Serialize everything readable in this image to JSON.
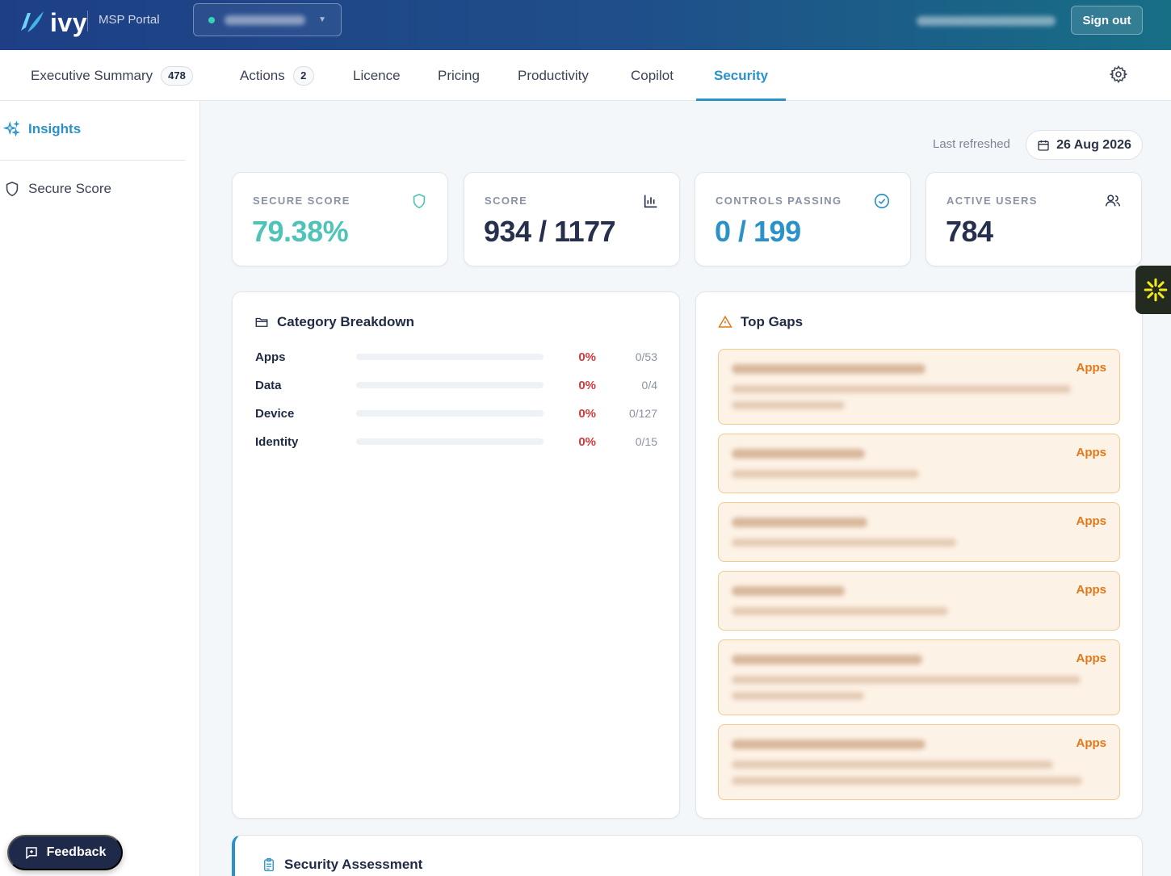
{
  "header": {
    "logo_text": "ivy",
    "portal_label": "MSP Portal",
    "signout_label": "Sign out"
  },
  "tabs": [
    {
      "label": "Executive Summary",
      "badge": "478"
    },
    {
      "label": "Actions",
      "badge": "2"
    },
    {
      "label": "Licence"
    },
    {
      "label": "Pricing"
    },
    {
      "label": "Productivity"
    },
    {
      "label": "Copilot"
    },
    {
      "label": "Security",
      "active": true
    }
  ],
  "sidebar": {
    "items": [
      {
        "label": "Insights",
        "icon": "sparkle-icon",
        "active": true
      },
      {
        "label": "Secure Score",
        "icon": "shield-icon"
      }
    ],
    "feedback_label": "Feedback"
  },
  "refresh": {
    "label": "Last refreshed",
    "date": "26 Aug 2026"
  },
  "stats": [
    {
      "label": "SECURE SCORE",
      "value": "79.38%",
      "color": "#4fc3b8",
      "icon": "shield-icon"
    },
    {
      "label": "SCORE",
      "value": "934 / 1177",
      "color": "#26304d",
      "icon": "bar-chart-icon"
    },
    {
      "label": "CONTROLS PASSING",
      "value": "0 / 199",
      "color": "#2a92c9",
      "icon": "check-circle-icon"
    },
    {
      "label": "ACTIVE USERS",
      "value": "784",
      "color": "#26304d",
      "icon": "users-icon"
    }
  ],
  "category_breakdown": {
    "title": "Category Breakdown",
    "rows": [
      {
        "name": "Apps",
        "percent": "0%",
        "count": "0/53",
        "fill": 0
      },
      {
        "name": "Data",
        "percent": "0%",
        "count": "0/4",
        "fill": 0
      },
      {
        "name": "Device",
        "percent": "0%",
        "count": "0/127",
        "fill": 0
      },
      {
        "name": "Identity",
        "percent": "0%",
        "count": "0/15",
        "fill": 0
      }
    ]
  },
  "top_gaps": {
    "title": "Top Gaps",
    "items": [
      {
        "tag": "Apps"
      },
      {
        "tag": "Apps"
      },
      {
        "tag": "Apps"
      },
      {
        "tag": "Apps"
      },
      {
        "tag": "Apps"
      },
      {
        "tag": "Apps"
      }
    ]
  },
  "security_assessment": {
    "title": "Security Assessment"
  },
  "colors": {
    "accent": "#2a92c9",
    "danger": "#d23a3a",
    "warning": "#e0791a"
  }
}
